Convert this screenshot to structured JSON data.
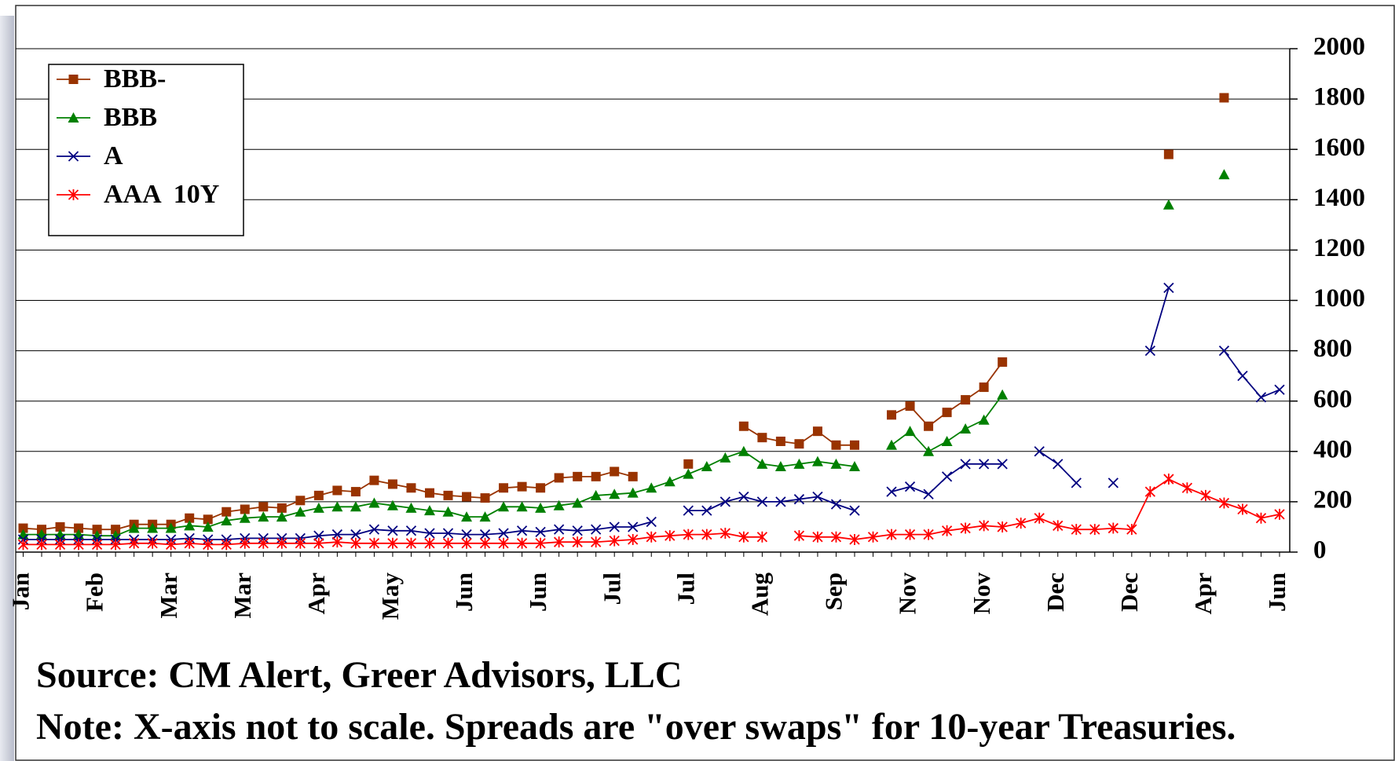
{
  "chart_data": {
    "type": "line",
    "categories": [
      "Jan",
      null,
      null,
      null,
      "Feb",
      null,
      null,
      null,
      "Mar",
      null,
      null,
      null,
      "Mar",
      null,
      null,
      null,
      "Apr",
      null,
      null,
      null,
      "May",
      null,
      null,
      null,
      "Jun",
      null,
      null,
      null,
      "Jun",
      null,
      null,
      null,
      "Jul",
      null,
      null,
      null,
      "Jul",
      null,
      null,
      null,
      "Aug",
      null,
      null,
      null,
      "Sep",
      null,
      null,
      null,
      "Nov",
      null,
      null,
      null,
      "Nov",
      null,
      null,
      null,
      "Dec",
      null,
      null,
      null,
      "Dec",
      null,
      null,
      null,
      "Apr",
      null,
      null,
      null,
      "Jun"
    ],
    "series": [
      {
        "name": "BBB-",
        "color": "#993300",
        "marker": "square",
        "values": [
          95,
          90,
          100,
          95,
          90,
          90,
          110,
          110,
          110,
          135,
          130,
          160,
          170,
          180,
          175,
          205,
          225,
          245,
          240,
          285,
          270,
          255,
          235,
          225,
          220,
          215,
          255,
          260,
          255,
          295,
          300,
          300,
          320,
          300,
          null,
          null,
          350,
          null,
          null,
          500,
          455,
          440,
          430,
          480,
          425,
          425,
          null,
          545,
          580,
          500,
          555,
          605,
          655,
          755,
          null,
          null,
          null,
          null,
          null,
          null,
          null,
          null,
          1580,
          null,
          null,
          1805,
          null,
          null,
          null
        ]
      },
      {
        "name": "BBB",
        "color": "#008000",
        "marker": "triangle",
        "values": [
          70,
          70,
          70,
          70,
          65,
          65,
          95,
          95,
          95,
          105,
          100,
          125,
          135,
          140,
          140,
          160,
          175,
          180,
          180,
          195,
          185,
          175,
          165,
          160,
          140,
          140,
          180,
          180,
          175,
          185,
          195,
          225,
          230,
          235,
          255,
          280,
          310,
          340,
          375,
          400,
          350,
          340,
          350,
          360,
          350,
          340,
          null,
          425,
          480,
          400,
          440,
          490,
          525,
          625,
          null,
          null,
          null,
          null,
          null,
          null,
          null,
          null,
          1380,
          null,
          null,
          1500,
          null,
          null,
          null
        ]
      },
      {
        "name": "A",
        "color": "#000080",
        "marker": "x",
        "values": [
          50,
          50,
          50,
          50,
          50,
          50,
          50,
          50,
          50,
          55,
          50,
          50,
          55,
          55,
          55,
          55,
          65,
          70,
          70,
          90,
          85,
          85,
          75,
          75,
          70,
          70,
          75,
          85,
          80,
          90,
          85,
          90,
          100,
          100,
          120,
          null,
          165,
          165,
          200,
          220,
          200,
          200,
          210,
          220,
          190,
          165,
          null,
          240,
          260,
          230,
          300,
          350,
          350,
          350,
          null,
          400,
          350,
          275,
          null,
          275,
          null,
          800,
          1050,
          null,
          null,
          800,
          700,
          615,
          645
        ]
      },
      {
        "name": "AAA  10Y",
        "color": "#ff0000",
        "marker": "star",
        "values": [
          30,
          30,
          30,
          30,
          30,
          30,
          35,
          35,
          30,
          35,
          30,
          30,
          35,
          35,
          35,
          35,
          35,
          40,
          35,
          35,
          35,
          35,
          35,
          35,
          35,
          35,
          35,
          35,
          35,
          40,
          40,
          40,
          45,
          50,
          60,
          65,
          70,
          70,
          75,
          60,
          60,
          null,
          65,
          60,
          60,
          50,
          60,
          70,
          70,
          70,
          85,
          95,
          105,
          100,
          115,
          135,
          105,
          90,
          90,
          95,
          90,
          240,
          290,
          255,
          225,
          195,
          170,
          135,
          150
        ]
      }
    ],
    "ylim": [
      0,
      2000
    ],
    "yticks": [
      0,
      200,
      400,
      600,
      800,
      1000,
      1200,
      1400,
      1600,
      1800,
      2000
    ],
    "y_axis_side": "right",
    "grid": true,
    "legend": "top-left",
    "annotations": [
      "Source: CM Alert, Greer Advisors, LLC",
      "Note: X-axis not to scale. Spreads are \"over swaps\" for 10-year Treasuries."
    ]
  }
}
